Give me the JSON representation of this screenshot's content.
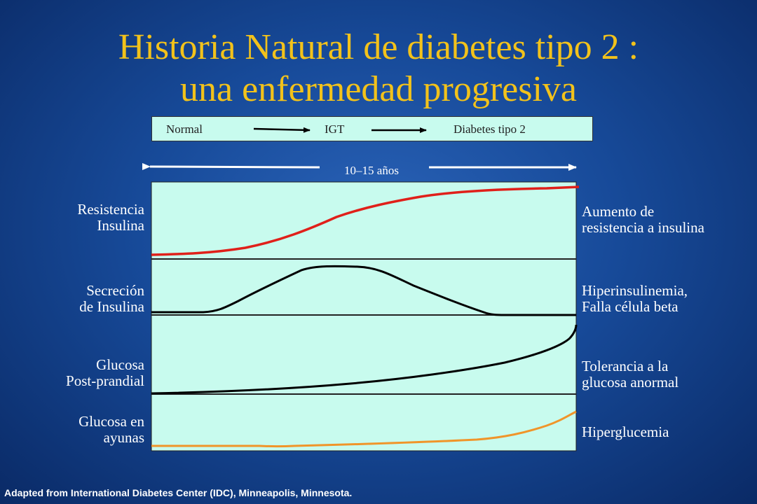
{
  "title_line1": "Historia Natural de diabetes tipo 2 :",
  "title_line2": "una enfermedad progresiva",
  "stages": {
    "normal": "Normal",
    "igt": "IGT",
    "diabetes": "Diabetes tipo 2"
  },
  "duration_label": "10–15 años",
  "rows": [
    {
      "left_line1": "Resistencia",
      "left_line2": "Insulina",
      "right_line1": "Aumento de",
      "right_line2": "resistencia a insulina",
      "color": "#e0201a"
    },
    {
      "left_line1": "Secreción",
      "left_line2": "de Insulina",
      "right_line1": "Hiperinsulinemia,",
      "right_line2": "Falla célula beta",
      "color": "#000000"
    },
    {
      "left_line1": "Glucosa",
      "left_line2": "Post-prandial",
      "right_line1": "Tolerancia a la",
      "right_line2": "glucosa  anormal",
      "color": "#000000"
    },
    {
      "left_line1": "Glucosa en",
      "left_line2": "ayunas",
      "right_line1": "Hiperglucemia",
      "right_line2": "",
      "color": "#f0952a"
    }
  ],
  "panel_color": "#c8fbee",
  "footer": "Adapted from International Diabetes Center (IDC), Minneapolis, Minnesota."
}
